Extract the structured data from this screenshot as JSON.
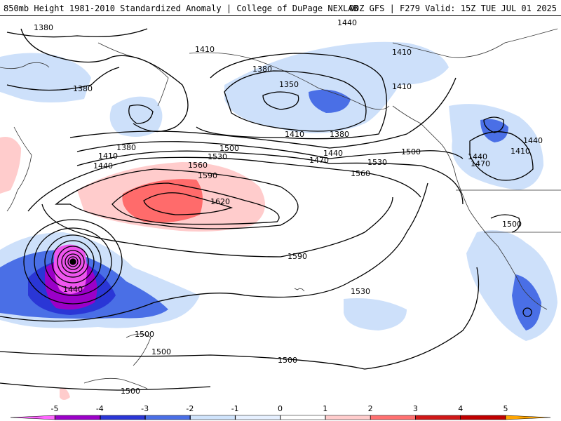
{
  "header": {
    "left": "850mb Height 1981-2010 Standardized Anomaly | College of DuPage NEXLAB",
    "right": "00Z GFS | F279 Valid: 15Z TUE JUL 01 2025"
  },
  "contour_labels": [
    "1380",
    "1380",
    "1380",
    "1380",
    "1380",
    "1350",
    "1410",
    "1410",
    "1410",
    "1410",
    "1410",
    "1410",
    "1440",
    "1440",
    "1440",
    "1440",
    "1440",
    "1440",
    "1470",
    "1470",
    "1500",
    "1500",
    "1500",
    "1500",
    "1500",
    "1500",
    "1500",
    "1530",
    "1530",
    "1530",
    "1560",
    "1560",
    "1590",
    "1590",
    "1620"
  ],
  "colorbar": {
    "ticks": [
      "-5",
      "-4",
      "-3",
      "-2",
      "-1",
      "0",
      "1",
      "2",
      "3",
      "4",
      "5"
    ],
    "colors": [
      "#ff66ff",
      "#b000d0",
      "#3a2bd8",
      "#4d6ee8",
      "#bfdcff",
      "#ffffff",
      "#ffd0d0",
      "#ff8080",
      "#e02020",
      "#c00000",
      "#ffa000"
    ],
    "segment_colors": {
      "-5": "#ff66ff",
      "-4": "#9b00c8",
      "-3": "#2a36d6",
      "-2": "#4a6fe6",
      "-1": "#cfe3fb",
      "0": "#ffffff",
      "1": "#ffcccc",
      "2": "#ff7070",
      "3": "#d01818",
      "4": "#c00000",
      "5": "#ffa500"
    }
  },
  "anomaly_colors": {
    "light_blue": "#cde0fa",
    "blue": "#4a6fe6",
    "dark_blue": "#2a36d6",
    "purple": "#9b00c8",
    "magenta": "#ee55ee",
    "light_red": "#ffcccc",
    "red": "#ff6b6b"
  }
}
